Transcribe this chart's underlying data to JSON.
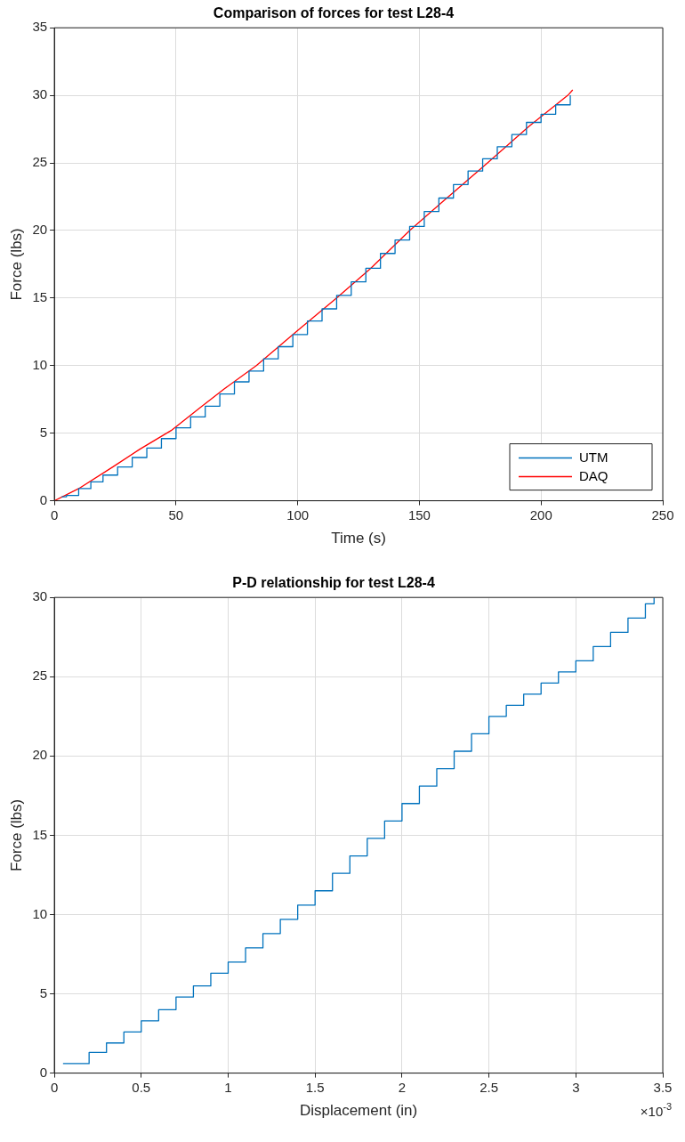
{
  "chart_data": [
    {
      "type": "line",
      "title": "Comparison of forces for test L28-4",
      "xlabel": "Time (s)",
      "ylabel": "Force (lbs)",
      "xlim": [
        0,
        250
      ],
      "ylim": [
        0,
        35
      ],
      "xticks": [
        0,
        50,
        100,
        150,
        200,
        250
      ],
      "yticks": [
        0,
        5,
        10,
        15,
        20,
        25,
        30,
        35
      ],
      "grid": true,
      "legend": "bottom right",
      "marker": "none",
      "line_style": "solid",
      "series": [
        {
          "name": "UTM",
          "color": "#0072bd",
          "type": "step",
          "x": [
            3,
            5,
            10,
            15,
            20,
            26,
            32,
            38,
            44,
            50,
            56,
            62,
            68,
            74,
            80,
            86,
            92,
            98,
            104,
            110,
            116,
            122,
            128,
            134,
            140,
            146,
            152,
            158,
            164,
            170,
            176,
            182,
            188,
            194,
            200,
            206,
            212
          ],
          "values": [
            0.3,
            0.4,
            0.9,
            1.4,
            1.9,
            2.5,
            3.2,
            3.9,
            4.6,
            5.4,
            6.2,
            7.0,
            7.9,
            8.8,
            9.6,
            10.5,
            11.4,
            12.3,
            13.3,
            14.2,
            15.2,
            16.2,
            17.2,
            18.3,
            19.3,
            20.3,
            21.4,
            22.4,
            23.4,
            24.4,
            25.3,
            26.2,
            27.1,
            28.0,
            28.6,
            29.3,
            30.0
          ]
        },
        {
          "name": "DAQ",
          "color": "#ff0000",
          "x": [
            0,
            10,
            24,
            35,
            48,
            60,
            70,
            83,
            100,
            116,
            130,
            146,
            160,
            178,
            195,
            211,
            213
          ],
          "values": [
            0,
            0.9,
            2.5,
            3.8,
            5.2,
            6.9,
            8.3,
            10,
            12.6,
            15,
            17.2,
            20,
            22.2,
            25,
            27.7,
            30,
            30.4
          ]
        }
      ]
    },
    {
      "type": "step",
      "title": "P-D relationship for test L28-4",
      "xlabel": "Displacement (in)",
      "ylabel": "Force (lbs)",
      "xlim": [
        0,
        3.5
      ],
      "ylim": [
        0,
        30
      ],
      "xticks": [
        0,
        0.5,
        1,
        1.5,
        2,
        2.5,
        3,
        3.5
      ],
      "yticks": [
        0,
        5,
        10,
        15,
        20,
        25,
        30
      ],
      "grid": true,
      "marker": "none",
      "line_style": "solid",
      "annotations": [
        "×10$^{-3}$"
      ],
      "series": [
        {
          "color": "#0072bd",
          "x": [
            0.05,
            0.1,
            0.2,
            0.3,
            0.4,
            0.5,
            0.6,
            0.7,
            0.8,
            0.9,
            1,
            1.1,
            1.2,
            1.3,
            1.4,
            1.5,
            1.6,
            1.7,
            1.8,
            1.9,
            2,
            2.1,
            2.2,
            2.3,
            2.4,
            2.5,
            2.6,
            2.7,
            2.8,
            2.9,
            3,
            3.1,
            3.2,
            3.3,
            3.4,
            3.45
          ],
          "values": [
            0.6,
            0.6,
            1.3,
            1.9,
            2.6,
            3.3,
            4.0,
            4.8,
            5.5,
            6.3,
            7.0,
            7.9,
            8.8,
            9.7,
            10.6,
            11.5,
            12.6,
            13.7,
            14.8,
            15.9,
            17.0,
            18.1,
            19.2,
            20.3,
            21.4,
            22.5,
            23.2,
            23.9,
            24.6,
            25.3,
            26.0,
            26.9,
            27.8,
            28.7,
            29.6,
            30
          ]
        }
      ]
    }
  ]
}
